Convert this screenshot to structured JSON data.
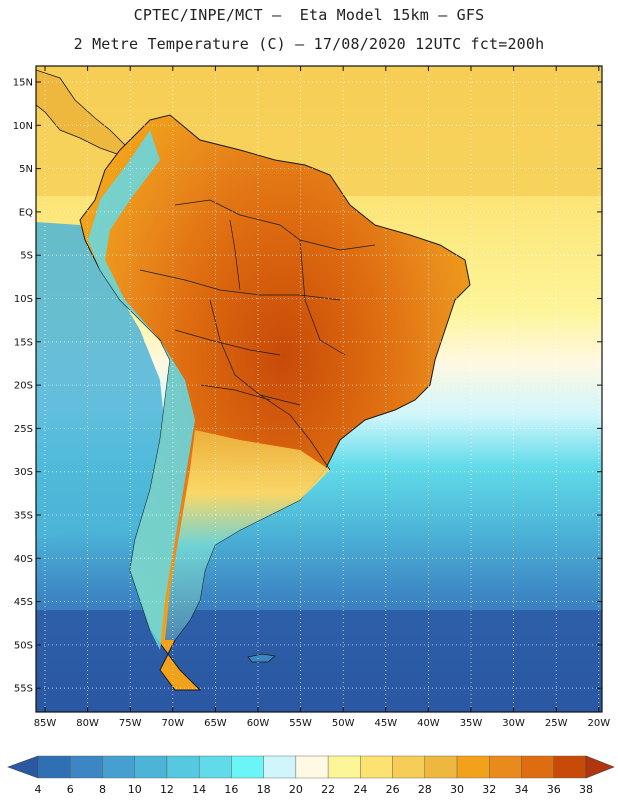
{
  "title_line1": "CPTEC/INPE/MCT –  Eta Model 15km – GFS",
  "title_line2": "2 Metre Temperature (C) – 17/08/2020 12UTC fct=200h",
  "map": {
    "lat_labels": [
      "15N",
      "10N",
      "5N",
      "EQ",
      "5S",
      "10S",
      "15S",
      "20S",
      "25S",
      "30S",
      "35S",
      "40S",
      "45S",
      "50S",
      "55S"
    ],
    "lon_labels": [
      "85W",
      "80W",
      "75W",
      "70W",
      "65W",
      "60W",
      "55W",
      "50W",
      "45W",
      "40W",
      "35W",
      "30W",
      "25W",
      "20W"
    ]
  },
  "colorbar": {
    "ticks": [
      "4",
      "6",
      "8",
      "10",
      "12",
      "14",
      "16",
      "18",
      "20",
      "22",
      "24",
      "26",
      "28",
      "30",
      "32",
      "34",
      "36",
      "38"
    ],
    "colors": [
      "#2f6fb3",
      "#3d86c4",
      "#46a0cf",
      "#4cb4d7",
      "#55c9e0",
      "#61dbe9",
      "#6cf5f6",
      "#d0f6fb",
      "#fff8e2",
      "#fdf59a",
      "#fce270",
      "#f6cd56",
      "#eeb73e",
      "#f1a21a",
      "#e98a1c",
      "#de6c10",
      "#c84a09"
    ],
    "lower_end_color": "#2a58a3",
    "upper_end_color": "#b2360d"
  },
  "colors": {
    "land_warm": "#f1a21a",
    "land_hot": "#de6c10",
    "ocean_north": "#fce270",
    "ocean_south": "#2f6fb3",
    "border": "#1a1a1a"
  }
}
